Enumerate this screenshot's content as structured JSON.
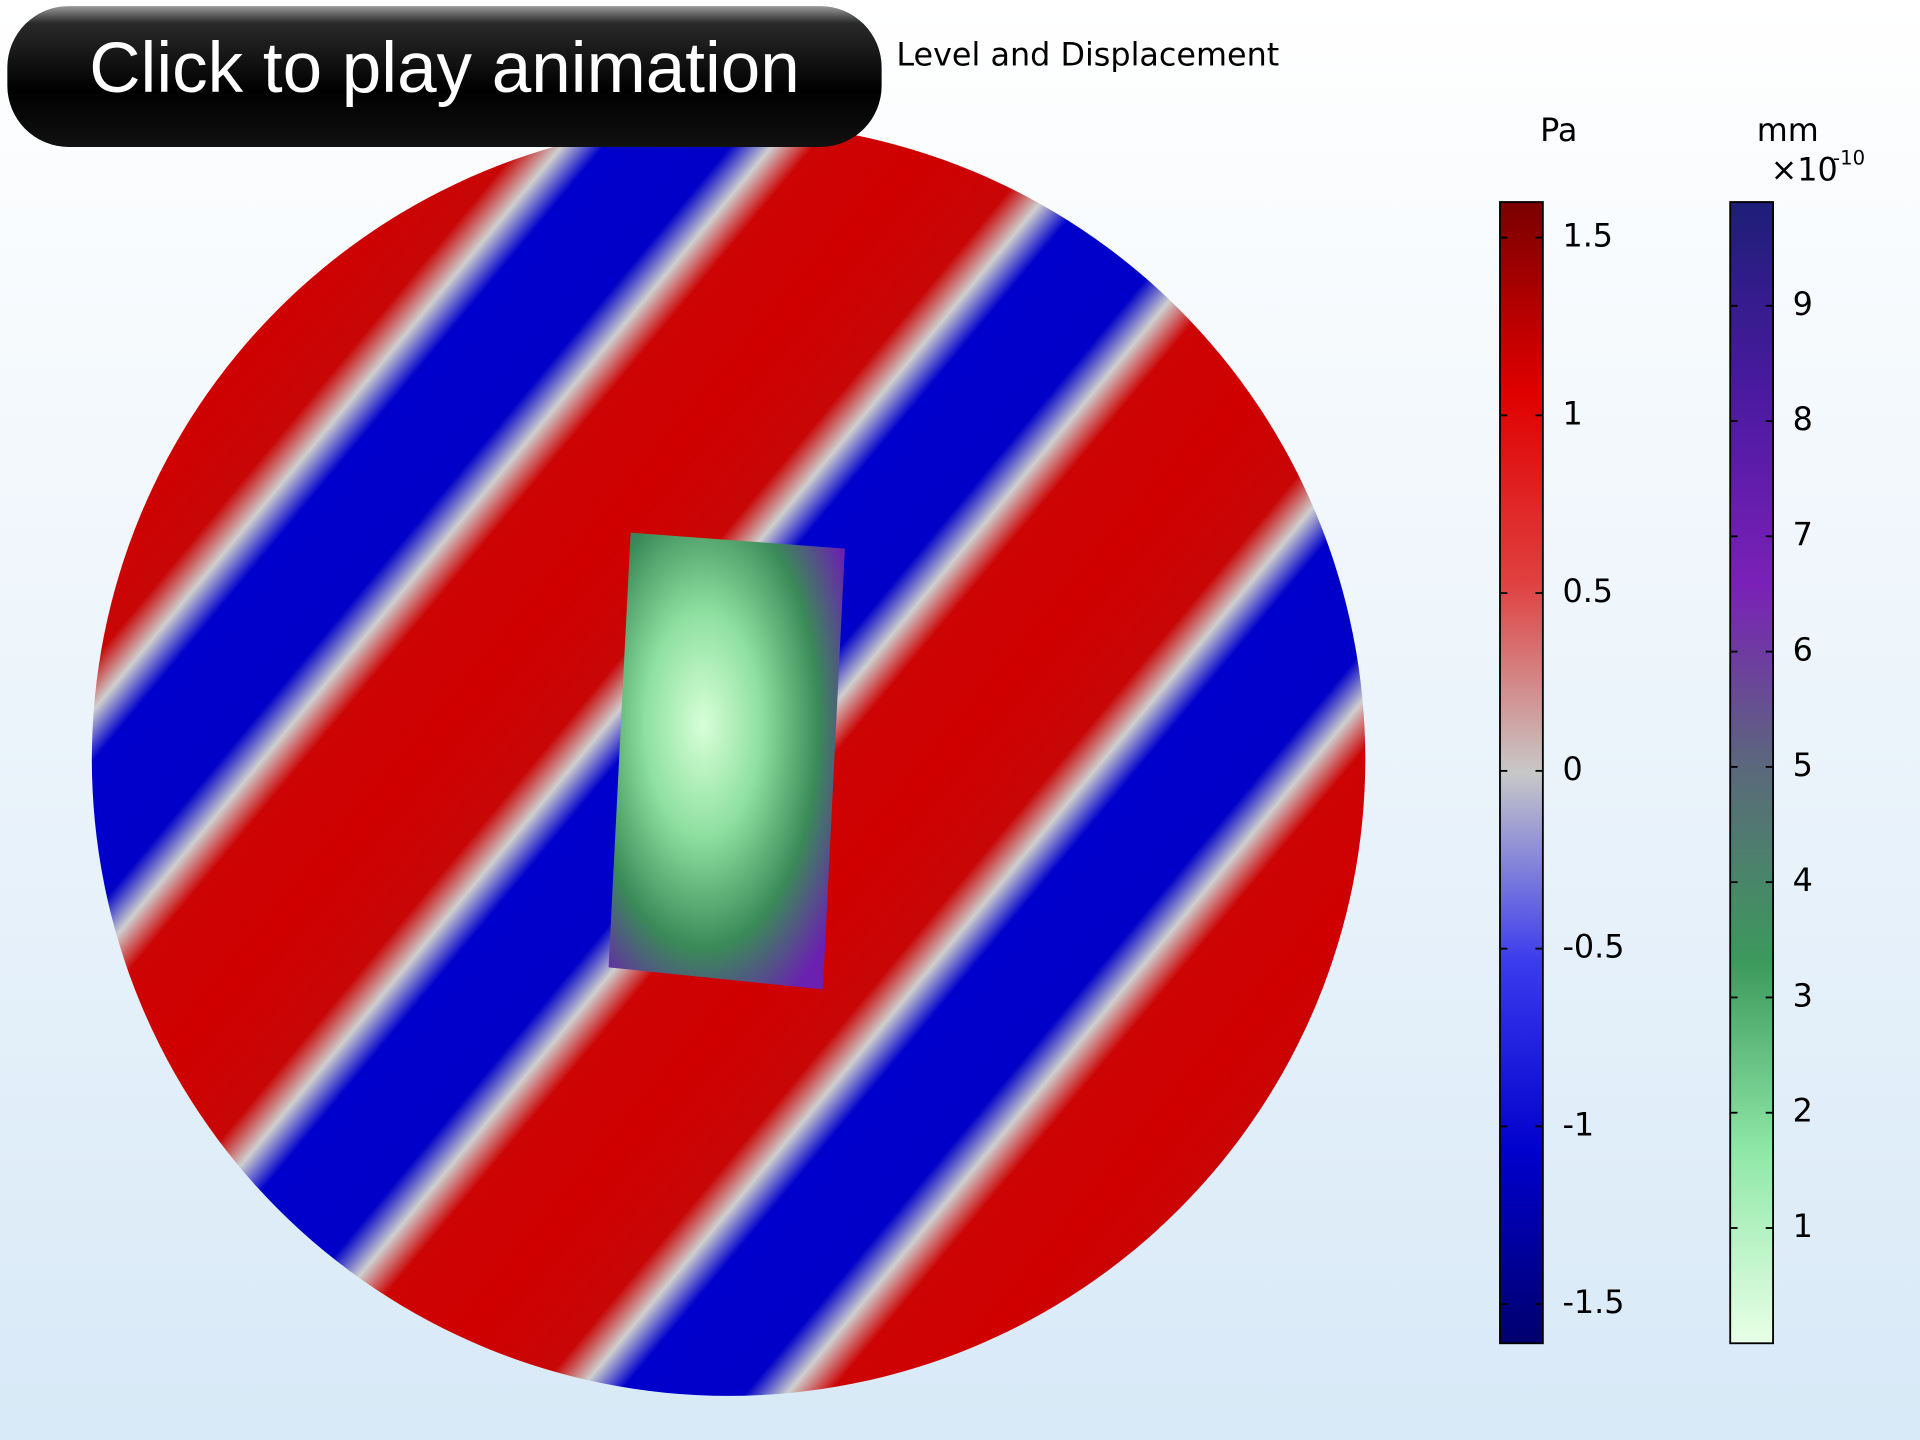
{
  "overlay": {
    "button": "Click to play animation"
  },
  "title": "Level and Displacement",
  "colorbars": [
    {
      "unit": "Pa",
      "lim": [
        -1.61,
        1.6
      ],
      "ticks": [
        1.5,
        1,
        0.5,
        0,
        -0.5,
        -1,
        -1.5
      ],
      "colors": [
        "#00006e",
        "#0000cc",
        "#3a3aee",
        "#c8c8c8",
        "#e04040",
        "#e00000",
        "#7a0000"
      ]
    },
    {
      "unit": "mm",
      "multiplier": "×10",
      "exponent": "-10",
      "lim": [
        0,
        9.9
      ],
      "ticks": [
        9,
        8,
        7,
        6,
        5,
        4,
        3,
        2,
        1
      ],
      "colors": [
        "#e8ffe6",
        "#90e8a8",
        "#3c9a5c",
        "#5a6a7a",
        "#7a20b8",
        "#4a1aa0",
        "#1e1e78"
      ]
    }
  ]
}
